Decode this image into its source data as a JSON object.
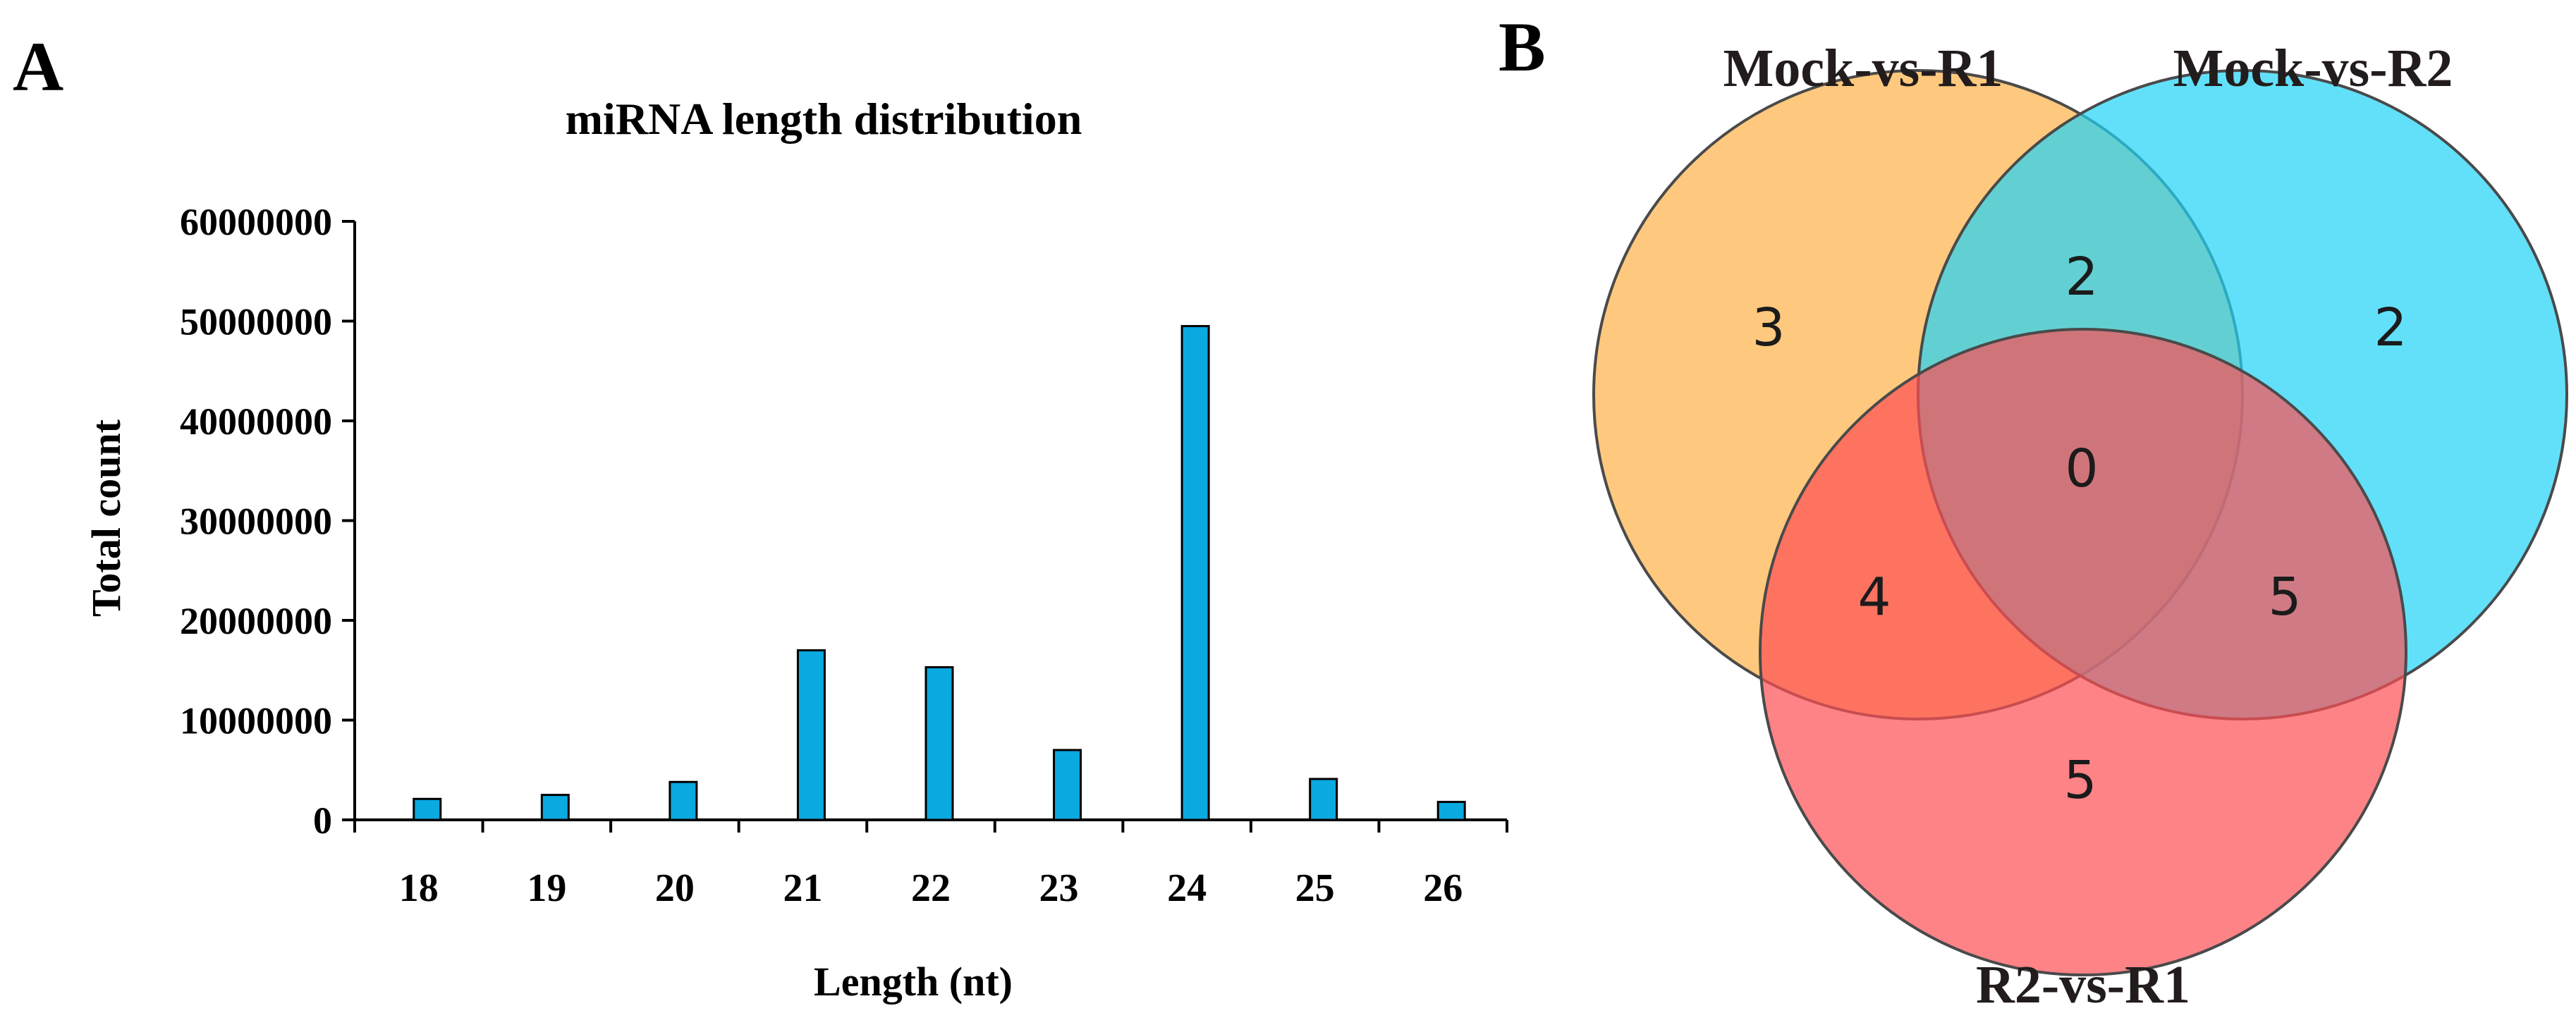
{
  "panels": {
    "a_label": "A",
    "b_label": "B"
  },
  "chart_data": [
    {
      "type": "bar",
      "title": "miRNA length distribution",
      "xlabel": "Length (nt)",
      "ylabel": "Total count",
      "categories": [
        "18",
        "19",
        "20",
        "21",
        "22",
        "23",
        "24",
        "25",
        "26"
      ],
      "values": [
        2100000,
        2500000,
        3800000,
        17000000,
        15300000,
        7000000,
        49500000,
        4100000,
        1800000
      ],
      "ylim": [
        0,
        60000000
      ],
      "yticks": [
        0,
        10000000,
        20000000,
        30000000,
        40000000,
        50000000,
        60000000
      ],
      "ytick_labels": [
        "0",
        "10000000",
        "20000000",
        "30000000",
        "40000000",
        "50000000",
        "60000000"
      ],
      "bar_color": "#0aa9e0",
      "grid": false,
      "legend": "none"
    },
    {
      "type": "venn",
      "sets": [
        {
          "name": "Mock-vs-R1",
          "color": "#fdb247"
        },
        {
          "name": "Mock-vs-R2",
          "color": "#1fd3f6"
        },
        {
          "name": "R2-vs-R1",
          "color": "#fd4f54"
        }
      ],
      "regions": {
        "mock_r1_only": 3,
        "mock_r2_only": 2,
        "r2_r1_only": 5,
        "mock_r1_and_mock_r2": 2,
        "mock_r1_and_r2_r1": 4,
        "mock_r2_and_r2_r1": 5,
        "all_three": 0
      }
    }
  ]
}
